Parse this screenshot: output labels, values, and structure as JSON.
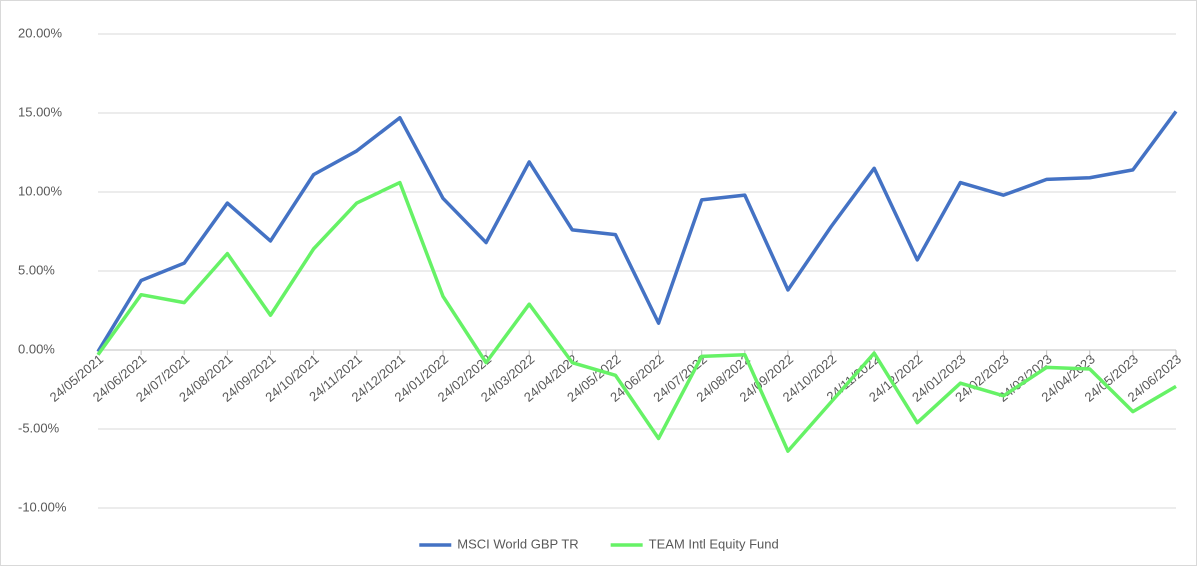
{
  "chart_data": {
    "type": "line",
    "categories": [
      "24/05/2021",
      "24/06/2021",
      "24/07/2021",
      "24/08/2021",
      "24/09/2021",
      "24/10/2021",
      "24/11/2021",
      "24/12/2021",
      "24/01/2022",
      "24/02/2022",
      "24/03/2022",
      "24/04/2022",
      "24/05/2022",
      "24/06/2022",
      "24/07/2022",
      "24/08/2022",
      "24/09/2022",
      "24/10/2022",
      "24/11/2022",
      "24/12/2022",
      "24/01/2023",
      "24/02/2023",
      "24/03/2023",
      "24/04/2023",
      "24/05/2023",
      "24/06/2023"
    ],
    "series": [
      {
        "name": "MSCI World GBP TR",
        "color": "#4472c4",
        "values": [
          -0.1,
          4.4,
          5.5,
          9.3,
          6.9,
          11.1,
          12.6,
          14.7,
          9.6,
          6.8,
          11.9,
          7.6,
          7.3,
          1.7,
          9.5,
          9.8,
          3.8,
          7.8,
          11.5,
          5.7,
          10.6,
          9.8,
          10.8,
          10.9,
          11.4,
          15.1
        ]
      },
      {
        "name": "TEAM Intl Equity Fund",
        "color": "#66f266",
        "values": [
          -0.3,
          3.5,
          3.0,
          6.1,
          2.2,
          6.4,
          9.3,
          10.6,
          3.4,
          -0.8,
          2.9,
          -0.8,
          -1.6,
          -5.6,
          -0.4,
          -0.3,
          -6.4,
          -3.3,
          -0.2,
          -4.6,
          -2.1,
          -2.9,
          -1.1,
          -1.2,
          -3.9,
          -2.3
        ]
      }
    ],
    "ylim": [
      -10,
      20
    ],
    "yticks": [
      {
        "value": -10,
        "label": "-10.00%"
      },
      {
        "value": -5,
        "label": "-5.00%"
      },
      {
        "value": 0,
        "label": "0.00%"
      },
      {
        "value": 5,
        "label": "5.00%"
      },
      {
        "value": 10,
        "label": "10.00%"
      },
      {
        "value": 15,
        "label": "15.00%"
      },
      {
        "value": 20,
        "label": "20.00%"
      }
    ],
    "grid": true,
    "legend": "bottom"
  }
}
